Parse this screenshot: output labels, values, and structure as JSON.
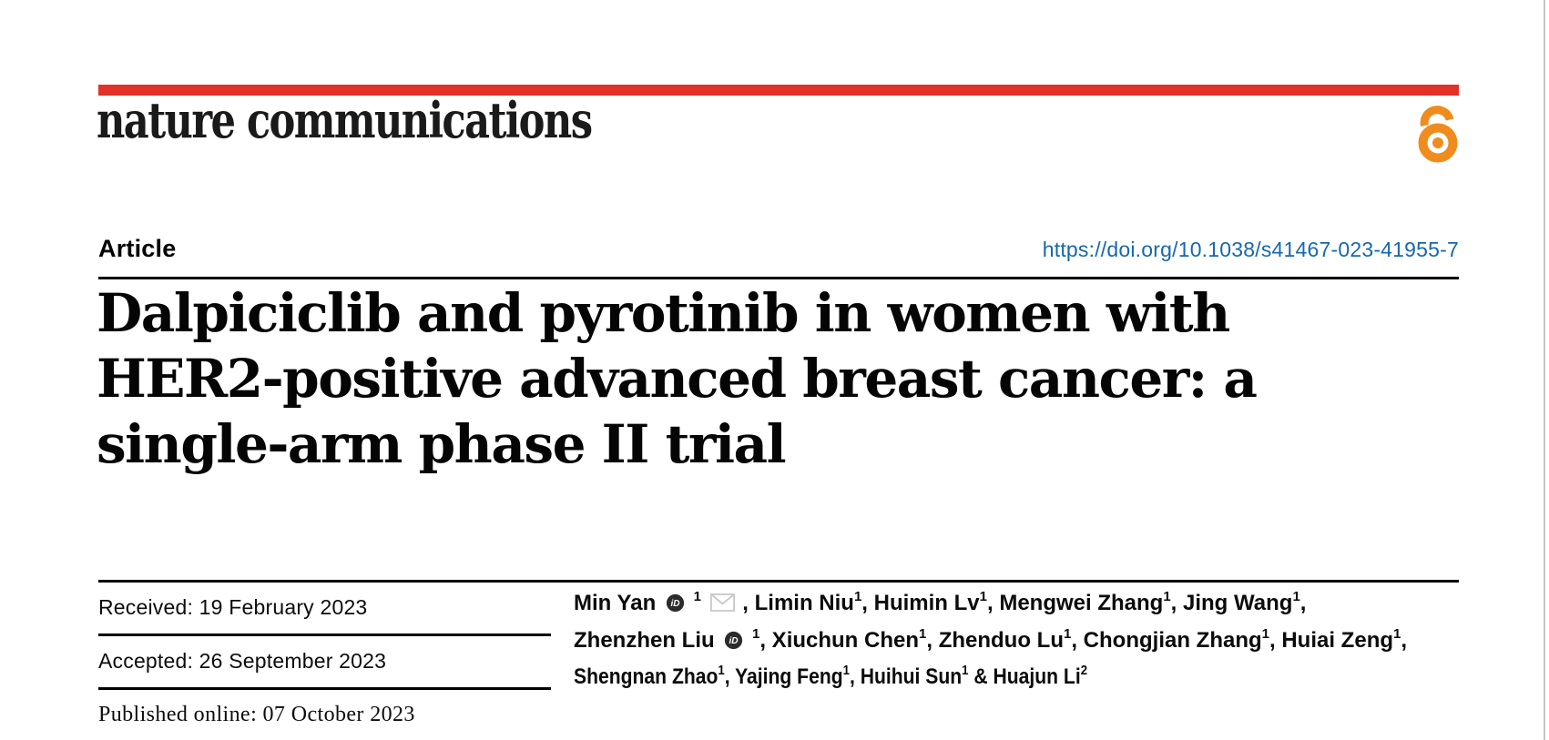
{
  "brand": {
    "logo_text": "nature communications",
    "bar_color": "#e23127",
    "open_access_color": "#f08c1e",
    "open_access_icon": "open-access-lock"
  },
  "article": {
    "kicker": "Article",
    "doi": "https://doi.org/10.1038/s41467-023-41955-7",
    "doi_color": "#1668ad",
    "title_lines": [
      "Dalpiciclib and pyrotinib in women with",
      "HER2-positive advanced breast cancer: a",
      "single-arm phase II trial"
    ]
  },
  "dates": {
    "rows": [
      {
        "text": "Received: 19 February 2023"
      },
      {
        "text": "Accepted: 26 September 2023"
      },
      {
        "text": "Published online: 07 October 2023"
      }
    ]
  },
  "authors": {
    "orcid_icon_color": "#2b2b2b",
    "envelope_icon_color": "#c8c8c8",
    "lines": [
      {
        "condensed": false,
        "tokens": [
          {
            "t": "Min Yan"
          },
          {
            "icon": "orcid"
          },
          {
            "sup": "1"
          },
          {
            "icon": "mail"
          },
          {
            "t": ", Limin Niu"
          },
          {
            "sup": "1"
          },
          {
            "t": ", Huimin Lv"
          },
          {
            "sup": "1"
          },
          {
            "t": ", Mengwei Zhang"
          },
          {
            "sup": "1"
          },
          {
            "t": ", Jing Wang"
          },
          {
            "sup": "1"
          },
          {
            "t": ","
          }
        ]
      },
      {
        "condensed": false,
        "tokens": [
          {
            "t": "Zhenzhen Liu"
          },
          {
            "icon": "orcid"
          },
          {
            "sup": "1"
          },
          {
            "t": ", Xiuchun Chen"
          },
          {
            "sup": "1"
          },
          {
            "t": ", Zhenduo Lu"
          },
          {
            "sup": "1"
          },
          {
            "t": ", Chongjian Zhang"
          },
          {
            "sup": "1"
          },
          {
            "t": ", Huiai Zeng"
          },
          {
            "sup": "1"
          },
          {
            "t": ","
          }
        ]
      },
      {
        "condensed": true,
        "tokens": [
          {
            "t": "Shengnan Zhao"
          },
          {
            "sup": "1"
          },
          {
            "t": ", Yajing Feng"
          },
          {
            "sup": "1"
          },
          {
            "t": ", Huihui Sun"
          },
          {
            "sup": "1"
          },
          {
            "t": " & Huajun Li"
          },
          {
            "sup": "2"
          }
        ]
      }
    ]
  }
}
